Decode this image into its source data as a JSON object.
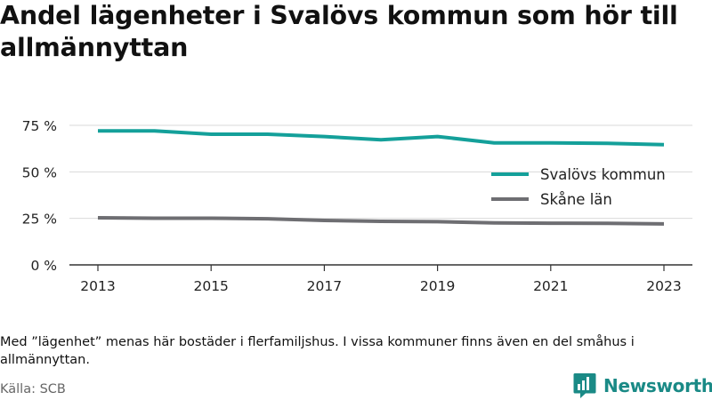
{
  "title": "Andel lägenheter i Svalövs kommun som hör till allmännyttan",
  "note": "Med ”lägenhet” menas här bostäder i flerfamiljshus. I vissa kommuner finns även en del småhus i allmännyttan.",
  "source": "Källa: SCB",
  "brand": {
    "name": "Newsworthy",
    "icon": "newsworthy-logo-icon",
    "color": "#1a8a86"
  },
  "chart_data": {
    "type": "line",
    "x": [
      2013,
      2014,
      2015,
      2016,
      2017,
      2018,
      2019,
      2020,
      2021,
      2022,
      2023
    ],
    "x_ticks": [
      "2013",
      "2015",
      "2017",
      "2019",
      "2021",
      "2023"
    ],
    "y_ticks": [
      "0 %",
      "25 %",
      "50 %",
      "75 %"
    ],
    "y_tick_values": [
      0,
      25,
      50,
      75
    ],
    "ylim": [
      0,
      75
    ],
    "grid": true,
    "legend_position": "right",
    "series": [
      {
        "name": "Svalövs kommun",
        "color": "#14a09a",
        "values": [
          72.0,
          72.0,
          70.2,
          70.2,
          69.0,
          67.2,
          69.0,
          65.6,
          65.6,
          65.3,
          64.6
        ]
      },
      {
        "name": "Skåne län",
        "color": "#6e6e72",
        "values": [
          25.3,
          25.1,
          25.1,
          24.8,
          23.9,
          23.4,
          23.2,
          22.6,
          22.4,
          22.3,
          22.0
        ]
      }
    ]
  }
}
